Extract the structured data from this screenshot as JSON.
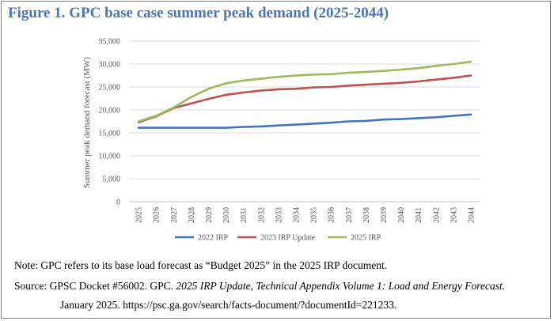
{
  "figure": {
    "title": "Figure 1. GPC base case summer peak demand (2025-2044)",
    "note": "Note: GPC refers to its base load forecast as “Budget 2025” in the 2025 IRP document.",
    "source_prefix": "Source: GPSC Docket #56002. GPC.",
    "source_title": "2025 IRP Update, Technical Appendix Volume 1: Load and Energy Forecast.",
    "source_line2": "January 2025. https://psc.ga.gov/search/facts-document/?documentId=221233."
  },
  "chart_data": {
    "type": "line",
    "title": "",
    "xlabel": "",
    "ylabel": "Summer peak demand forecast (MW)",
    "ylim": [
      0,
      35000
    ],
    "yticks": [
      0,
      5000,
      10000,
      15000,
      20000,
      25000,
      30000,
      35000
    ],
    "ytick_labels": [
      "0",
      "5,000",
      "10,000",
      "15,000",
      "20,000",
      "25,000",
      "30,000",
      "35,000"
    ],
    "grid": true,
    "legend": "bottom",
    "categories": [
      "2025",
      "2026",
      "2027",
      "2028",
      "2029",
      "2030",
      "2031",
      "2032",
      "2033",
      "2034",
      "2035",
      "2036",
      "2037",
      "2038",
      "2039",
      "2040",
      "2041",
      "2042",
      "2043",
      "2044"
    ],
    "series": [
      {
        "name": "2022 IRP",
        "color": "#4472c4",
        "values": [
          16100,
          16100,
          16100,
          16100,
          16100,
          16100,
          16300,
          16400,
          16600,
          16800,
          17000,
          17200,
          17500,
          17600,
          17900,
          18000,
          18200,
          18400,
          18700,
          19000
        ]
      },
      {
        "name": "2023 IRP Update",
        "color": "#c0504d",
        "values": [
          17300,
          18600,
          20400,
          21400,
          22400,
          23300,
          23800,
          24200,
          24500,
          24600,
          24900,
          25000,
          25300,
          25500,
          25700,
          25900,
          26200,
          26600,
          27000,
          27500
        ]
      },
      {
        "name": "2025 IRP",
        "color": "#9bbb59",
        "values": [
          17500,
          18700,
          20500,
          22800,
          24600,
          25800,
          26400,
          26800,
          27200,
          27500,
          27700,
          27800,
          28100,
          28300,
          28500,
          28800,
          29100,
          29600,
          30000,
          30500
        ]
      }
    ]
  }
}
